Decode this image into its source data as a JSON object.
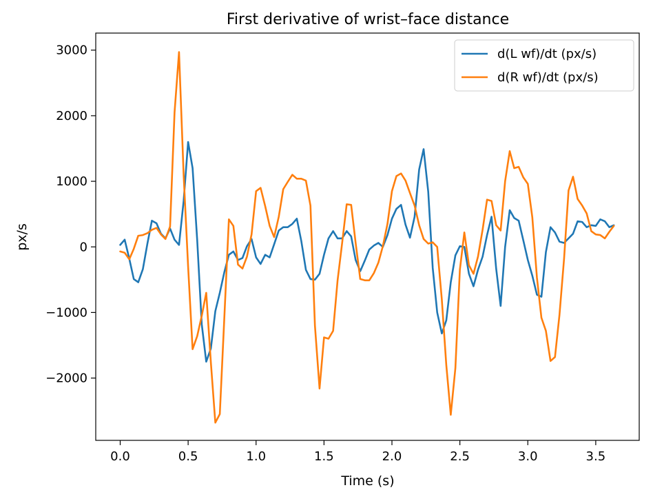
{
  "chart_data": {
    "type": "line",
    "title": "First derivative of wrist–face distance",
    "xlabel": "Time (s)",
    "ylabel": "px/s",
    "xlim": [
      -0.18,
      3.82
    ],
    "ylim": [
      -2950,
      3260
    ],
    "xticks": [
      0.0,
      0.5,
      1.0,
      1.5,
      2.0,
      2.5,
      3.0,
      3.5
    ],
    "xtick_labels": [
      "0.0",
      "0.5",
      "1.0",
      "1.5",
      "2.0",
      "2.5",
      "3.0",
      "3.5"
    ],
    "yticks": [
      -2000,
      -1000,
      0,
      1000,
      2000,
      3000
    ],
    "ytick_labels": [
      "−2000",
      "−1000",
      "0",
      "1000",
      "2000",
      "3000"
    ],
    "grid": false,
    "legend_position": "top-right",
    "x": [
      0.0,
      0.033,
      0.067,
      0.1,
      0.133,
      0.167,
      0.2,
      0.233,
      0.267,
      0.3,
      0.333,
      0.367,
      0.4,
      0.433,
      0.467,
      0.5,
      0.533,
      0.567,
      0.6,
      0.633,
      0.667,
      0.7,
      0.733,
      0.767,
      0.8,
      0.833,
      0.867,
      0.9,
      0.933,
      0.967,
      1.0,
      1.033,
      1.067,
      1.1,
      1.133,
      1.167,
      1.2,
      1.233,
      1.267,
      1.3,
      1.333,
      1.367,
      1.4,
      1.433,
      1.467,
      1.5,
      1.533,
      1.567,
      1.6,
      1.633,
      1.667,
      1.7,
      1.733,
      1.767,
      1.8,
      1.833,
      1.867,
      1.9,
      1.933,
      1.967,
      2.0,
      2.033,
      2.067,
      2.1,
      2.133,
      2.167,
      2.2,
      2.233,
      2.267,
      2.3,
      2.333,
      2.367,
      2.4,
      2.433,
      2.467,
      2.5,
      2.533,
      2.567,
      2.6,
      2.633,
      2.667,
      2.7,
      2.733,
      2.767,
      2.8,
      2.833,
      2.867,
      2.9,
      2.933,
      2.967,
      3.0,
      3.033,
      3.067,
      3.1,
      3.133,
      3.167,
      3.2,
      3.233,
      3.267,
      3.3,
      3.333,
      3.367,
      3.4,
      3.433,
      3.467,
      3.5,
      3.533,
      3.567,
      3.6,
      3.633
    ],
    "series": [
      {
        "name": "d(L wf)/dt (px/s)",
        "color": "#1f77b4",
        "values": [
          30,
          110,
          -180,
          -490,
          -540,
          -340,
          50,
          400,
          360,
          200,
          130,
          280,
          110,
          30,
          700,
          1600,
          1200,
          100,
          -1180,
          -1750,
          -1550,
          -980,
          -700,
          -380,
          -120,
          -70,
          -200,
          -170,
          10,
          120,
          -160,
          -260,
          -120,
          -160,
          40,
          250,
          300,
          300,
          350,
          430,
          90,
          -350,
          -490,
          -500,
          -410,
          -120,
          130,
          240,
          130,
          130,
          240,
          160,
          -200,
          -370,
          -210,
          -40,
          20,
          60,
          0,
          180,
          430,
          580,
          640,
          340,
          140,
          460,
          1180,
          1490,
          840,
          -320,
          -1000,
          -1320,
          -1120,
          -540,
          -130,
          10,
          0,
          -410,
          -600,
          -350,
          -150,
          180,
          460,
          -330,
          -900,
          0,
          560,
          440,
          400,
          100,
          -200,
          -440,
          -730,
          -760,
          -80,
          300,
          220,
          80,
          60,
          130,
          200,
          390,
          380,
          300,
          330,
          320,
          420,
          390,
          300,
          330
        ]
      },
      {
        "name": "d(R wf)/dt (px/s)",
        "color": "#ff7f0e",
        "values": [
          -70,
          -90,
          -190,
          -30,
          170,
          180,
          210,
          260,
          290,
          190,
          120,
          310,
          2050,
          2970,
          1100,
          -300,
          -1560,
          -1360,
          -1050,
          -700,
          -1760,
          -2680,
          -2550,
          -1050,
          420,
          320,
          -270,
          -330,
          -150,
          190,
          850,
          900,
          620,
          320,
          150,
          460,
          880,
          990,
          1100,
          1040,
          1040,
          1010,
          630,
          -1200,
          -2160,
          -1380,
          -1400,
          -1280,
          -510,
          50,
          650,
          640,
          60,
          -490,
          -510,
          -510,
          -400,
          -240,
          10,
          350,
          850,
          1080,
          1120,
          1010,
          820,
          630,
          330,
          120,
          50,
          70,
          0,
          -800,
          -1800,
          -2560,
          -1850,
          -350,
          220,
          -280,
          -410,
          -150,
          260,
          720,
          700,
          330,
          250,
          1000,
          1460,
          1200,
          1220,
          1060,
          960,
          450,
          -470,
          -1080,
          -1280,
          -1740,
          -1680,
          -1040,
          -180,
          860,
          1070,
          730,
          630,
          510,
          240,
          190,
          180,
          130,
          230,
          320
        ]
      }
    ]
  }
}
